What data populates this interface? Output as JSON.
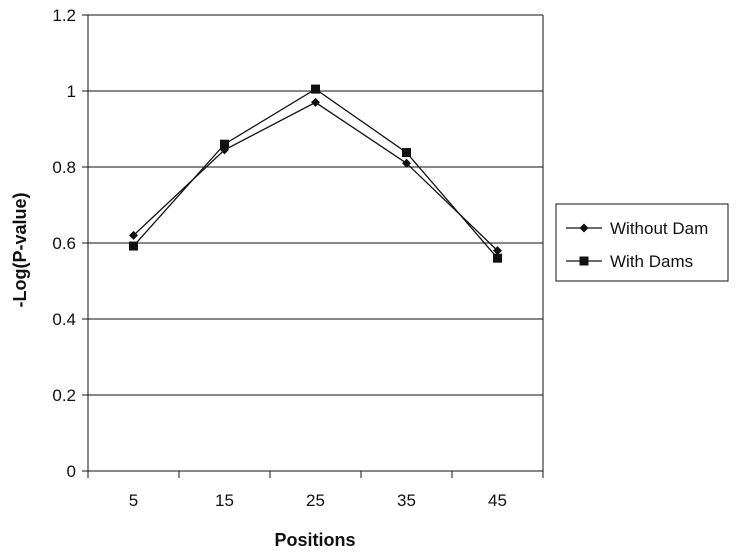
{
  "chart_data": {
    "type": "line",
    "title": "",
    "xlabel": "Positions",
    "ylabel": "-Log(P-value)",
    "categories": [
      "5",
      "15",
      "25",
      "35",
      "45"
    ],
    "ylim": [
      0,
      1.2
    ],
    "yticks": [
      "0",
      "0.2",
      "0.4",
      "0.6",
      "0.8",
      "1",
      "1.2"
    ],
    "grid": true,
    "legend_position": "right",
    "series": [
      {
        "name": "Without Dam",
        "marker": "diamond",
        "color": "#111111",
        "values": [
          0.62,
          0.845,
          0.97,
          0.81,
          0.58
        ]
      },
      {
        "name": "With Dams",
        "marker": "square",
        "color": "#111111",
        "values": [
          0.592,
          0.86,
          1.005,
          0.838,
          0.56
        ]
      }
    ]
  }
}
